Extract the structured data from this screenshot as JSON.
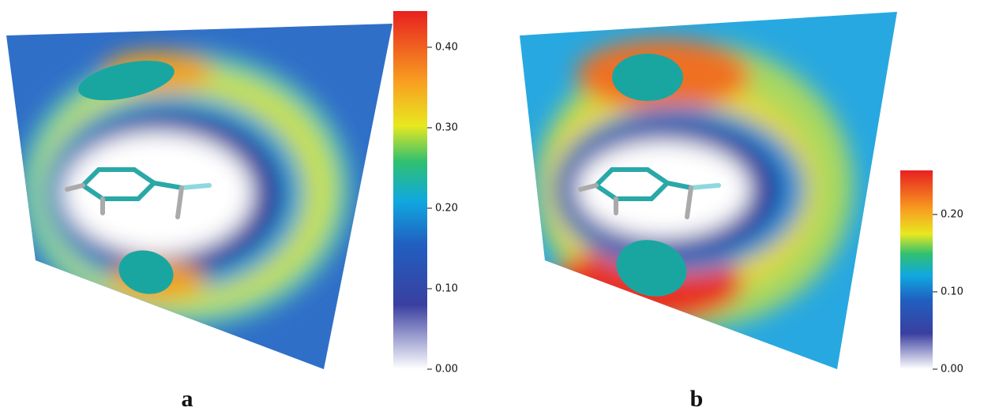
{
  "panels": [
    {
      "label": "a",
      "colorbar": {
        "range": [
          0,
          0.445
        ],
        "ticks": [
          {
            "value": 0,
            "label": "0.00"
          },
          {
            "value": 0.1,
            "label": "0.10"
          },
          {
            "value": 0.2,
            "label": "0.20"
          },
          {
            "value": 0.3,
            "label": "0.30"
          },
          {
            "value": 0.4,
            "label": "0.40"
          }
        ]
      }
    },
    {
      "label": "b",
      "colorbar": {
        "range": [
          0,
          0.257
        ],
        "ticks": [
          {
            "value": 0,
            "label": "0.00"
          },
          {
            "value": 0.1,
            "label": "0.10"
          },
          {
            "value": 0.2,
            "label": "0.20"
          }
        ]
      }
    }
  ]
}
